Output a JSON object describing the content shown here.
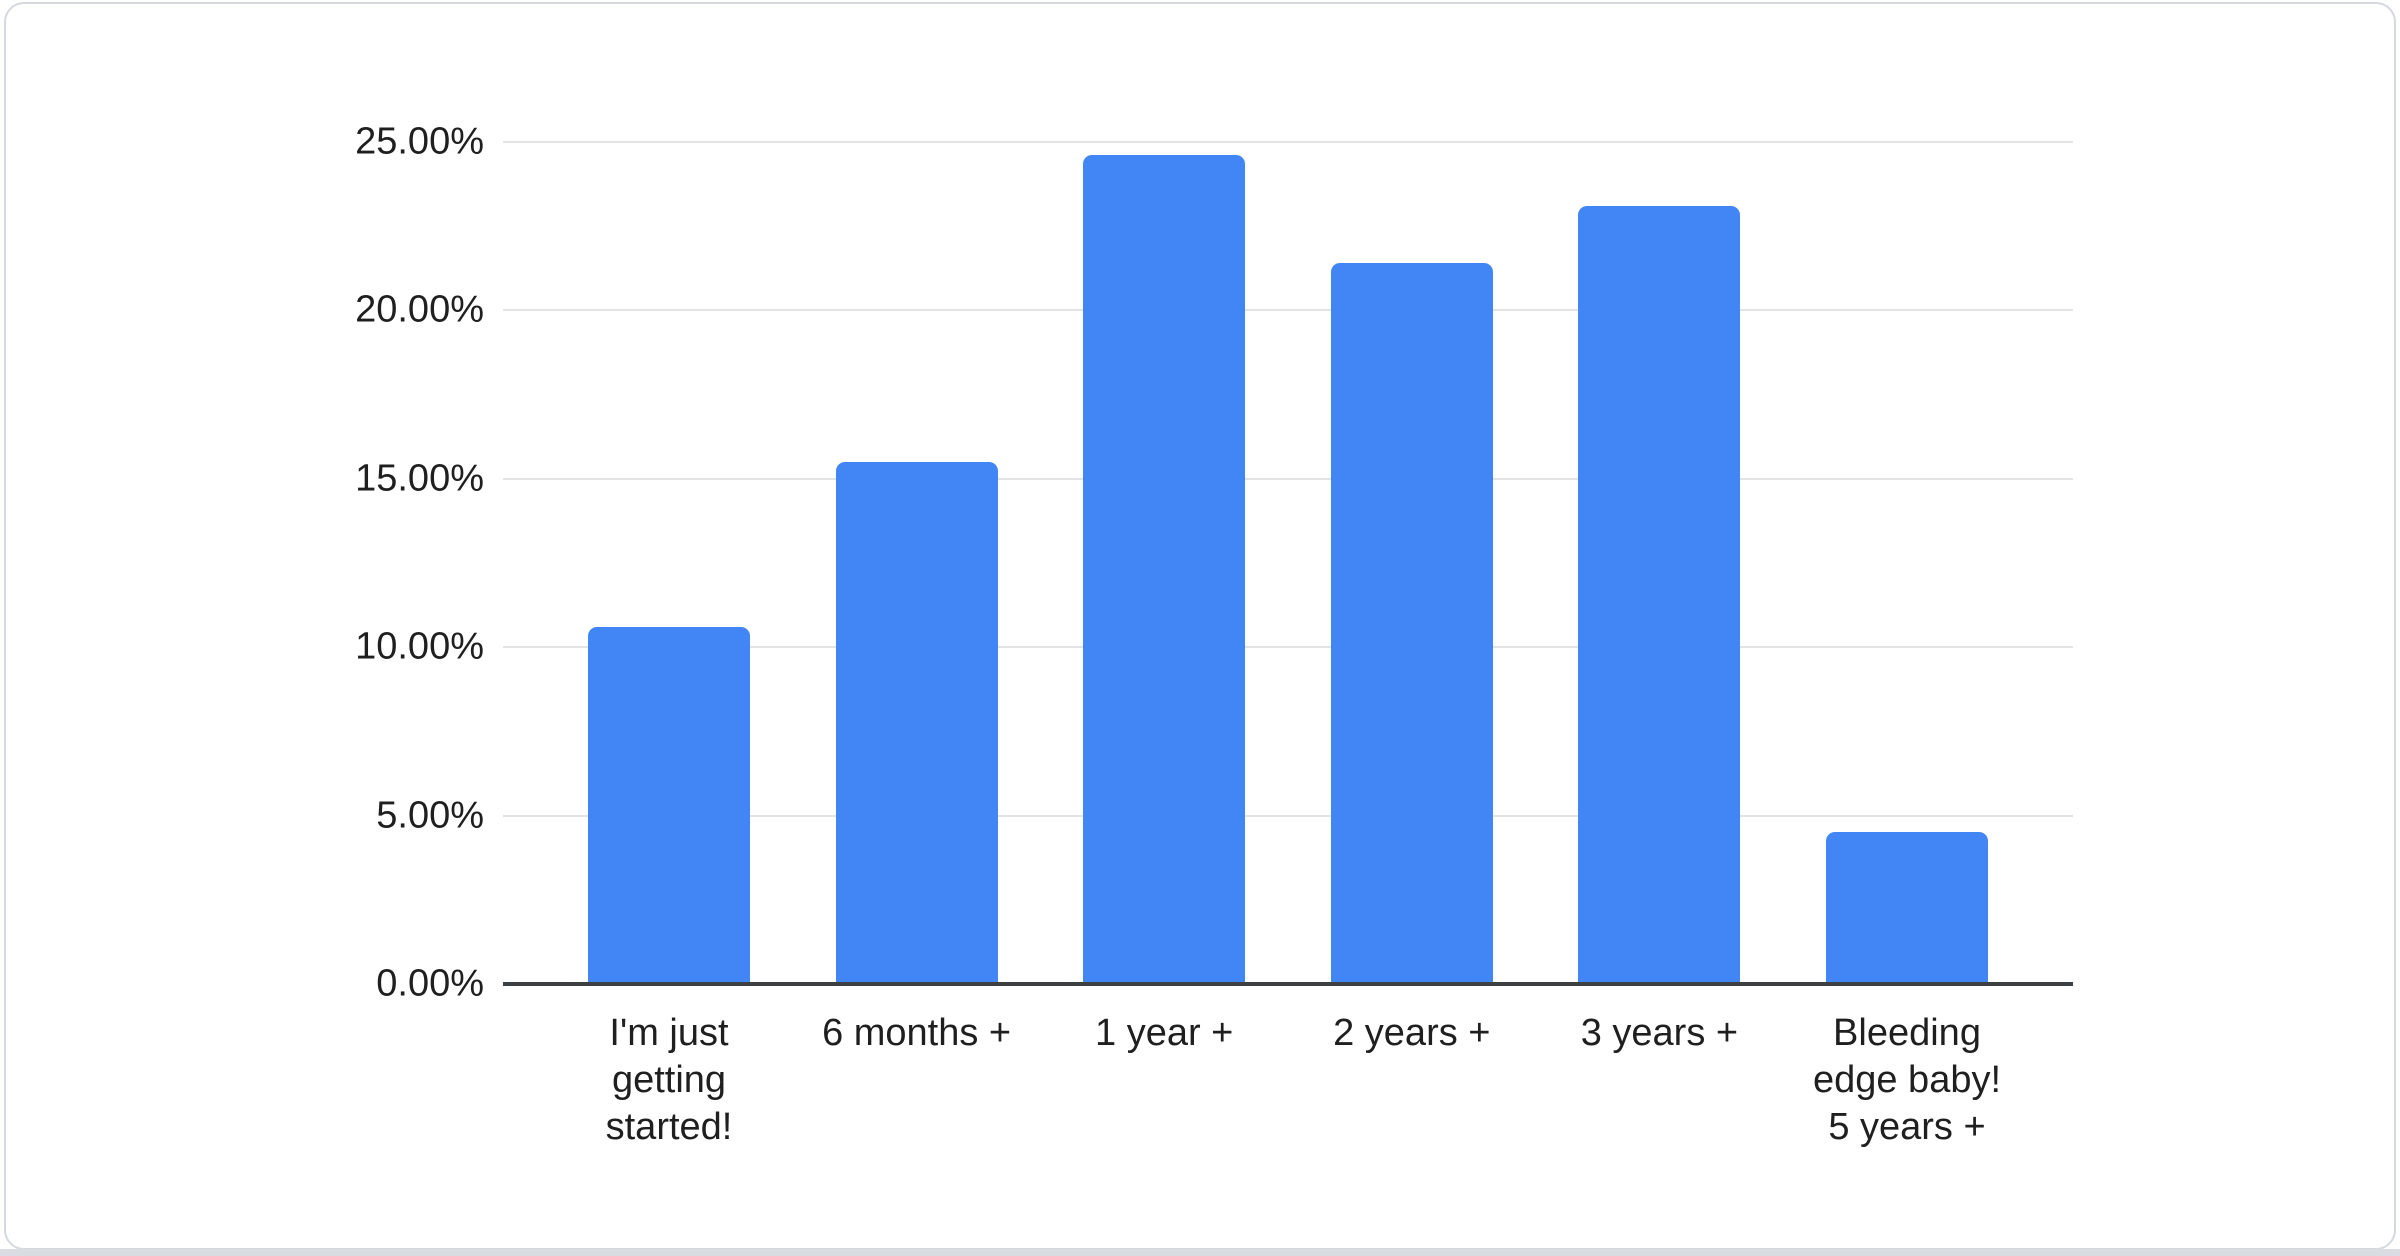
{
  "page": {
    "background": "#ffffff",
    "card_border_color": "#d5d8dc",
    "bottom_strip_color": "#d9dce0"
  },
  "chart_data": {
    "type": "bar",
    "title": "",
    "xlabel": "",
    "ylabel": "",
    "categories": [
      "I'm just getting started!",
      "6 months +",
      "1 year +",
      "2 years +",
      "3 years +",
      "Bleeding edge baby! 5 years +"
    ],
    "x_label_text": [
      "I'm just\ngetting\nstarted!",
      "6 months +",
      "1 year +",
      "2 years +",
      "3 years +",
      "Bleeding\nedge baby!\n5 years +"
    ],
    "values": [
      10.6,
      15.5,
      24.6,
      21.4,
      23.1,
      4.5
    ],
    "value_unit": "%",
    "ylim": [
      0,
      25
    ],
    "y_tick_values": [
      0,
      5,
      10,
      15,
      20,
      25
    ],
    "y_tick_labels": [
      "0.00%",
      "5.00%",
      "10.00%",
      "15.00%",
      "20.00%",
      "25.00%"
    ],
    "grid": true,
    "legend_position": "none",
    "bar_color": "#4285f4",
    "gridline_color": "#e3e3e3",
    "axis_line_color": "#3c4043",
    "label_color": "#1f1f1f"
  }
}
